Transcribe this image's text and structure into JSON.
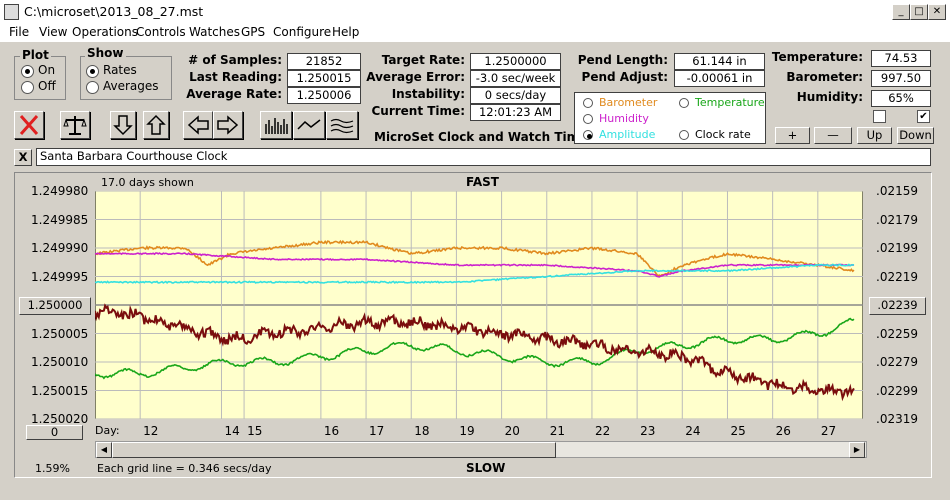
{
  "window": {
    "title": "C:\\microset\\2013_08_27.mst"
  },
  "menu": [
    "File",
    "View",
    "Operations",
    "Controls",
    "Watches",
    "GPS",
    "Configure",
    "Help"
  ],
  "plot_group": {
    "title": "Plot",
    "on": "On",
    "off": "Off",
    "selected": "On"
  },
  "show_group": {
    "title": "Show",
    "rates": "Rates",
    "averages": "Averages",
    "selected": "Rates"
  },
  "stats": {
    "samples_label": "# of Samples:",
    "samples": "21852",
    "last_reading_label": "Last Reading:",
    "last_reading": "1.250015",
    "average_rate_label": "Average Rate:",
    "average_rate": "1.250006",
    "target_rate_label": "Target Rate:",
    "target_rate": "1.2500000",
    "average_error_label": "Average Error:",
    "average_error": "-3.0 sec/week",
    "instability_label": "Instability:",
    "instability": "0 secs/day",
    "current_time_label": "Current Time:",
    "current_time": "12:01:23 AM",
    "pend_length_label": "Pend Length:",
    "pend_length": "61.144 in",
    "pend_adjust_label": "Pend Adjust:",
    "pend_adjust": "-0.00061 in",
    "temperature_label": "Temperature:",
    "temperature": "74.53",
    "barometer_label": "Barometer:",
    "barometer": "997.50",
    "humidity_label": "Humidity:",
    "humidity": "65%"
  },
  "app_caption": "MicroSet Clock and Watch Timer",
  "series_select": {
    "barometer": "Barometer",
    "temperature": "Temperature",
    "humidity": "Humidity",
    "amplitude": "Amplitude",
    "clock_rate": "Clock rate",
    "selected": "Amplitude",
    "colors": {
      "barometer": "#e08a1e",
      "temperature": "#19a619",
      "humidity": "#cc22cc",
      "amplitude": "#33e0e0",
      "clock_rate": "#000000"
    }
  },
  "adjust_buttons": {
    "plus": "+",
    "minus": "—",
    "up": "Up",
    "down": "Down"
  },
  "checkboxes": [
    false,
    true
  ],
  "description": {
    "close": "X",
    "value": "Santa Barbara Courthouse Clock"
  },
  "chart_data": {
    "type": "line",
    "top_label": "FAST",
    "bottom_label": "SLOW",
    "days_shown": "17.0 days shown",
    "grid_note": "Each grid line = 0.346 secs/day",
    "percent": "1.59%",
    "x_label": "Day:",
    "x_ticks": [
      "12",
      "14",
      "15",
      "16",
      "17",
      "18",
      "19",
      "20",
      "21",
      "22",
      "23",
      "24",
      "25",
      "26",
      "27"
    ],
    "y_left_ticks": [
      "1.249980",
      "1.249985",
      "1.249990",
      "1.249995",
      "1.250000",
      "1.250005",
      "1.250010",
      "1.250015",
      "1.250020"
    ],
    "y_left_button": "1.250000",
    "y_right_ticks": [
      ".02159",
      ".02179",
      ".02199",
      ".02219",
      ".02239",
      ".02259",
      ".02279",
      ".02299",
      ".02319"
    ],
    "y_right_button": ".02239",
    "left_bottom_button": "0",
    "ylim": [
      1.24998,
      1.25002
    ],
    "xlim": [
      11.0,
      28.0
    ],
    "background": "#ffffcc",
    "series": [
      {
        "color": "#e08a1e",
        "x": [
          11.0,
          12.0,
          13.0,
          13.5,
          14.0,
          15.0,
          16.0,
          17.0,
          18.0,
          19.0,
          20.0,
          21.0,
          22.0,
          23.0,
          23.5,
          24.0,
          25.0,
          26.0,
          27.0,
          27.8
        ],
        "y": [
          1.249991,
          1.24999,
          1.24999,
          1.249993,
          1.249991,
          1.24999,
          1.249989,
          1.249989,
          1.249991,
          1.24999,
          1.24999,
          1.249991,
          1.24999,
          1.249991,
          1.249995,
          1.249993,
          1.249991,
          1.249992,
          1.249993,
          1.249994
        ]
      },
      {
        "color": "#cc22cc",
        "x": [
          11.0,
          13.0,
          15.0,
          17.0,
          19.0,
          21.0,
          23.0,
          23.5,
          24.0,
          25.0,
          26.0,
          27.0,
          27.8
        ],
        "y": [
          1.249991,
          1.249991,
          1.249992,
          1.249992,
          1.249993,
          1.249993,
          1.249994,
          1.249995,
          1.249994,
          1.249993,
          1.249993,
          1.249993,
          1.249993
        ]
      },
      {
        "color": "#33e0e0",
        "x": [
          11.0,
          13.0,
          15.0,
          17.0,
          19.0,
          21.0,
          23.0,
          25.0,
          27.0,
          27.8
        ],
        "y": [
          1.249996,
          1.249996,
          1.249996,
          1.249996,
          1.249996,
          1.249995,
          1.249994,
          1.249994,
          1.249993,
          1.249993
        ]
      },
      {
        "color": "#19a619",
        "x": [
          11.0,
          12.0,
          13.0,
          14.0,
          15.0,
          16.0,
          17.0,
          18.0,
          19.0,
          20.0,
          21.0,
          22.0,
          23.0,
          24.0,
          25.0,
          26.0,
          27.0,
          27.8
        ],
        "y": [
          1.250012,
          1.250012,
          1.250011,
          1.25001,
          1.25001,
          1.250009,
          1.250008,
          1.250007,
          1.250008,
          1.250009,
          1.25001,
          1.25001,
          1.250008,
          1.250007,
          1.250006,
          1.250006,
          1.250005,
          1.250003
        ]
      },
      {
        "color": "#7a0d0d",
        "x": [
          11.0,
          12.0,
          13.0,
          14.0,
          15.0,
          16.0,
          17.0,
          18.0,
          19.0,
          20.0,
          21.0,
          22.0,
          23.0,
          24.0,
          25.0,
          26.0,
          27.0,
          27.8
        ],
        "y": [
          1.250001,
          1.250002,
          1.250004,
          1.250006,
          1.250005,
          1.250004,
          1.250003,
          1.250003,
          1.250004,
          1.250005,
          1.250006,
          1.250007,
          1.250008,
          1.250009,
          1.250012,
          1.250014,
          1.250015,
          1.250015
        ]
      }
    ]
  }
}
